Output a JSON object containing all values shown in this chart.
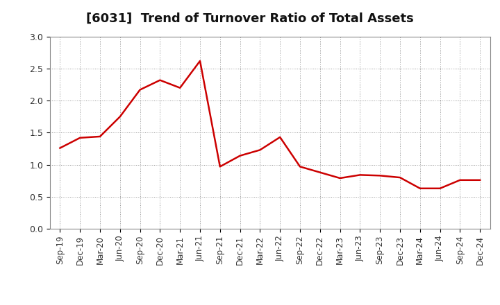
{
  "title": "[6031]  Trend of Turnover Ratio of Total Assets",
  "x_labels": [
    "Sep-19",
    "Dec-19",
    "Mar-20",
    "Jun-20",
    "Sep-20",
    "Dec-20",
    "Mar-21",
    "Jun-21",
    "Sep-21",
    "Dec-21",
    "Mar-22",
    "Jun-22",
    "Sep-22",
    "Dec-22",
    "Mar-23",
    "Jun-23",
    "Sep-23",
    "Dec-23",
    "Mar-24",
    "Jun-24",
    "Sep-24",
    "Dec-24"
  ],
  "y_values": [
    1.26,
    1.42,
    1.44,
    1.75,
    2.17,
    2.32,
    2.2,
    2.62,
    0.97,
    1.14,
    1.23,
    1.43,
    0.97,
    0.88,
    0.79,
    0.84,
    0.83,
    0.8,
    0.63,
    0.63,
    0.76,
    0.76
  ],
  "line_color": "#cc0000",
  "line_width": 1.8,
  "ylim": [
    0.0,
    3.0
  ],
  "yticks": [
    0.0,
    0.5,
    1.0,
    1.5,
    2.0,
    2.5,
    3.0
  ],
  "background_color": "#ffffff",
  "grid_color": "#999999",
  "title_fontsize": 13,
  "tick_fontsize": 8.5
}
